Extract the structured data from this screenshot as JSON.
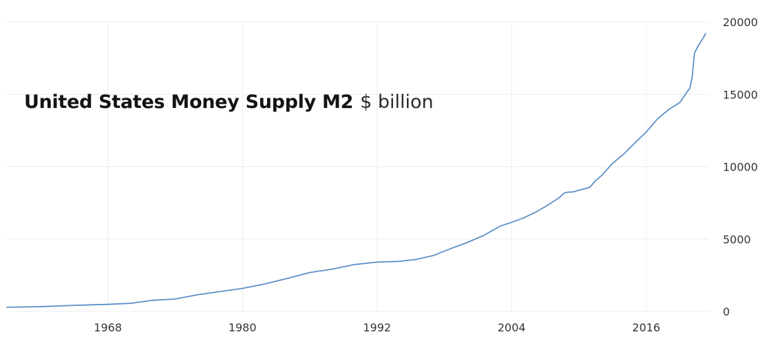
{
  "chart_data": {
    "type": "line",
    "title": "United States Money Supply M2",
    "unit": "$ billion",
    "xlabel": "",
    "ylabel": "",
    "x_ticks": [
      "1968",
      "1980",
      "1992",
      "2004",
      "2016"
    ],
    "y_ticks": [
      "0",
      "5000",
      "10000",
      "15000",
      "20000"
    ],
    "xlim": [
      1959,
      2021.6
    ],
    "ylim": [
      0,
      20000
    ],
    "grid": true,
    "y_axis_side": "right",
    "legend": "none",
    "series": [
      {
        "color": "#5b8fc7",
        "x": [
          1959.0,
          1962.0,
          1965.0,
          1968.0,
          1970.0,
          1972.0,
          1974.0,
          1976.0,
          1978.0,
          1980.0,
          1982.0,
          1984.0,
          1986.0,
          1988.0,
          1990.0,
          1992.0,
          1994.0,
          1995.5,
          1997.0,
          1998.5,
          2000.0,
          2001.5,
          2003.0,
          2004.0,
          2005.0,
          2006.0,
          2007.0,
          2008.0,
          2008.3,
          2008.7,
          2009.0,
          2009.5,
          2010.0,
          2010.5,
          2011.0,
          2011.5,
          2012.0,
          2013.0,
          2014.0,
          2015.0,
          2016.0,
          2017.0,
          2018.0,
          2019.0,
          2019.9,
          2020.1,
          2020.3,
          2020.6,
          2021.0,
          2021.3
        ],
        "values": [
          290,
          330,
          420,
          490,
          560,
          770,
          860,
          1150,
          1370,
          1590,
          1900,
          2280,
          2690,
          2920,
          3240,
          3410,
          3460,
          3600,
          3860,
          4320,
          4750,
          5250,
          5900,
          6160,
          6440,
          6800,
          7240,
          7740,
          7900,
          8180,
          8240,
          8260,
          8380,
          8470,
          8600,
          9050,
          9380,
          10230,
          10880,
          11650,
          12400,
          13300,
          13950,
          14440,
          15450,
          16200,
          17850,
          18300,
          18800,
          19200
        ]
      }
    ]
  }
}
